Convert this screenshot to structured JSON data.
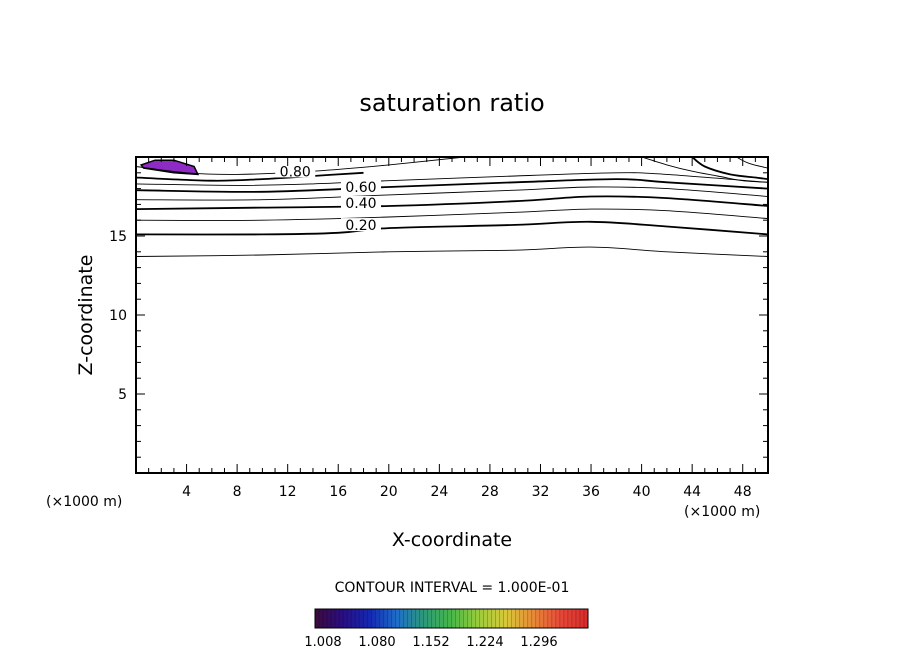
{
  "chart_data": {
    "type": "contour",
    "title": "saturation ratio",
    "xlabel": "X-coordinate",
    "ylabel": "Z-coordinate",
    "x_unit_left": "(×1000 m)",
    "x_unit_right": "(×1000 m)",
    "xlim": [
      0,
      50
    ],
    "ylim": [
      0,
      20
    ],
    "x_ticks": [
      4,
      8,
      12,
      16,
      20,
      24,
      28,
      32,
      36,
      40,
      44,
      48
    ],
    "y_ticks": [
      5,
      10,
      15
    ],
    "contour_interval_text": "CONTOUR INTERVAL = 1.000E-01",
    "contours": [
      {
        "level": 0.1,
        "label": "",
        "bold": false,
        "x": [
          0,
          10,
          20,
          30,
          36,
          42,
          50
        ],
        "z": [
          13.7,
          13.8,
          14.0,
          14.1,
          14.3,
          14.0,
          13.7
        ]
      },
      {
        "level": 0.2,
        "label": "0.20",
        "bold": true,
        "x": [
          0,
          10,
          16,
          20,
          30,
          36,
          42,
          50
        ],
        "z": [
          15.1,
          15.1,
          15.2,
          15.5,
          15.7,
          15.9,
          15.6,
          15.1
        ]
      },
      {
        "level": 0.3,
        "label": "",
        "bold": false,
        "x": [
          0,
          10,
          20,
          30,
          36,
          42,
          50
        ],
        "z": [
          16.0,
          16.0,
          16.2,
          16.5,
          16.7,
          16.6,
          16.1
        ]
      },
      {
        "level": 0.4,
        "label": "0.40",
        "bold": true,
        "x": [
          0,
          10,
          20,
          30,
          36,
          42,
          50
        ],
        "z": [
          16.7,
          16.8,
          16.9,
          17.2,
          17.5,
          17.4,
          16.9
        ]
      },
      {
        "level": 0.5,
        "label": "",
        "bold": false,
        "x": [
          0,
          10,
          20,
          30,
          36,
          42,
          50
        ],
        "z": [
          17.3,
          17.3,
          17.6,
          17.9,
          18.1,
          18.0,
          17.5
        ]
      },
      {
        "level": 0.6,
        "label": "0.60",
        "bold": true,
        "x": [
          0,
          10,
          20,
          30,
          38,
          42,
          50
        ],
        "z": [
          17.9,
          17.8,
          18.1,
          18.4,
          18.6,
          18.4,
          18.0
        ]
      },
      {
        "level": 0.7,
        "label": "",
        "bold": false,
        "x": [
          0,
          8,
          14,
          20,
          30,
          38,
          42,
          50
        ],
        "z": [
          18.3,
          18.2,
          18.3,
          18.5,
          18.8,
          19.0,
          18.9,
          18.4
        ]
      },
      {
        "level": 0.8,
        "label": "0.80",
        "bold": true,
        "x": [
          0,
          6,
          10,
          14,
          18
        ],
        "z": [
          18.7,
          18.5,
          18.6,
          18.8,
          19.0
        ]
      },
      {
        "level": 0.9,
        "label": "",
        "bold": false,
        "x": [
          0,
          4,
          8,
          14,
          20,
          26
        ],
        "z": [
          19.4,
          19.0,
          18.9,
          19.1,
          19.5,
          20.0
        ]
      }
    ],
    "top_right_contours": [
      {
        "bold": true,
        "x": [
          44,
          45,
          47,
          49,
          50
        ],
        "z": [
          20.0,
          19.4,
          18.9,
          18.7,
          18.6
        ]
      },
      {
        "bold": false,
        "x": [
          40,
          42,
          44,
          46,
          48,
          50
        ],
        "z": [
          20.0,
          19.5,
          19.1,
          18.8,
          18.5,
          18.4
        ]
      },
      {
        "bold": false,
        "x": [
          47.5,
          48.5,
          50
        ],
        "z": [
          20.0,
          19.6,
          19.3
        ]
      }
    ],
    "supersaturated_region": {
      "min_value": 1.008,
      "color": "#8e2bc4",
      "x": [
        0.4,
        1.5,
        3.0,
        4.6,
        4.9,
        3.0,
        0.6
      ],
      "z": [
        19.5,
        19.8,
        19.8,
        19.4,
        18.9,
        19.0,
        19.3
      ]
    },
    "colorbar": {
      "tick_labels": [
        "1.008",
        "1.080",
        "1.152",
        "1.224",
        "1.296"
      ],
      "colors": [
        "#3c0a3c",
        "#2a0e82",
        "#1428b4",
        "#1e6ec8",
        "#2c9a78",
        "#48b848",
        "#9ccc3c",
        "#d8c83a",
        "#e88a36",
        "#e84838",
        "#d82a2a"
      ]
    }
  }
}
